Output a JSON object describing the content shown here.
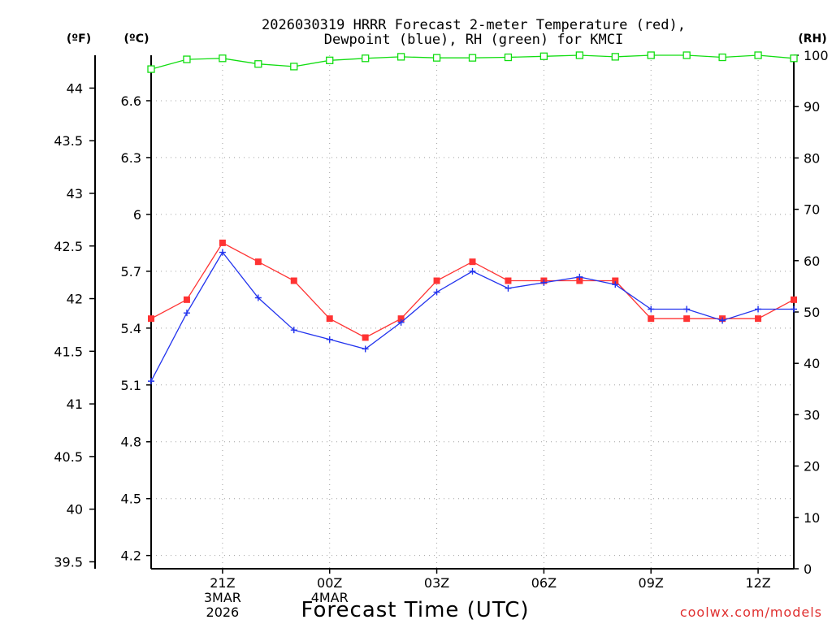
{
  "chart_data": {
    "type": "line",
    "title": [
      "2026030319 HRRR Forecast 2-meter Temperature (red),",
      "Dewpoint (blue), RH (green) for KMCI"
    ],
    "xlabel": "Forecast Time (UTC)",
    "credit": "coolwx.com/models",
    "units": {
      "fahrenheit": "(ºF)",
      "celsius": "(ºC)",
      "rh": "(RH)"
    },
    "celsius_axis": {
      "ylim": [
        4.13,
        6.84
      ],
      "ticks": [
        4.2,
        4.5,
        4.8,
        5.1,
        5.4,
        5.7,
        6.0,
        6.3,
        6.6
      ],
      "tick_labels": [
        "4.2",
        "4.5",
        "4.8",
        "5.1",
        "5.4",
        "5.7",
        "6",
        "6.3",
        "6.6"
      ]
    },
    "fahrenheit_axis": {
      "ticks": [
        39.5,
        40,
        40.5,
        41,
        41.5,
        42,
        42.5,
        43,
        43.5,
        44
      ],
      "tick_labels": [
        "39.5",
        "40",
        "40.5",
        "41",
        "41.5",
        "42",
        "42.5",
        "43",
        "43.5",
        "44"
      ]
    },
    "rh_axis": {
      "ylim": [
        0,
        100
      ],
      "ticks": [
        0,
        10,
        20,
        30,
        40,
        50,
        60,
        70,
        80,
        90,
        100
      ],
      "tick_labels": [
        "0",
        "10",
        "20",
        "30",
        "40",
        "50",
        "60",
        "70",
        "80",
        "90",
        "100"
      ]
    },
    "x_range_hours": [
      0,
      18
    ],
    "x_ticks": [
      {
        "hour": 2,
        "label": "21Z",
        "sub": [
          "3MAR",
          "2026"
        ]
      },
      {
        "hour": 5,
        "label": "00Z",
        "sub": [
          "4MAR"
        ]
      },
      {
        "hour": 8,
        "label": "03Z",
        "sub": []
      },
      {
        "hour": 11,
        "label": "06Z",
        "sub": []
      },
      {
        "hour": 14,
        "label": "09Z",
        "sub": []
      },
      {
        "hour": 17,
        "label": "12Z",
        "sub": []
      }
    ],
    "x_hours": [
      0,
      1,
      2,
      3,
      4,
      5,
      6,
      7,
      8,
      9,
      10,
      11,
      12,
      13,
      14,
      15,
      16,
      17,
      18
    ],
    "series": [
      {
        "name": "Temperature",
        "color": "#ff3333",
        "marker": "filled-square",
        "axis": "celsius",
        "values": [
          5.45,
          5.55,
          5.85,
          5.75,
          5.65,
          5.45,
          5.35,
          5.45,
          5.65,
          5.75,
          5.65,
          5.65,
          5.65,
          5.65,
          5.45,
          5.45,
          5.45,
          5.45,
          5.55
        ]
      },
      {
        "name": "Dewpoint",
        "color": "#2233ee",
        "marker": "plus",
        "axis": "celsius",
        "values": [
          5.12,
          5.48,
          5.8,
          5.56,
          5.39,
          5.34,
          5.29,
          5.43,
          5.59,
          5.7,
          5.61,
          5.64,
          5.67,
          5.63,
          5.5,
          5.5,
          5.44,
          5.5,
          5.5
        ]
      },
      {
        "name": "RH",
        "color": "#11dd11",
        "marker": "open-square",
        "axis": "rh",
        "values": [
          97.3,
          99.2,
          99.4,
          98.3,
          97.8,
          99.0,
          99.4,
          99.7,
          99.5,
          99.5,
          99.6,
          99.8,
          100,
          99.7,
          100,
          100,
          99.6,
          100,
          99.4
        ]
      }
    ]
  }
}
